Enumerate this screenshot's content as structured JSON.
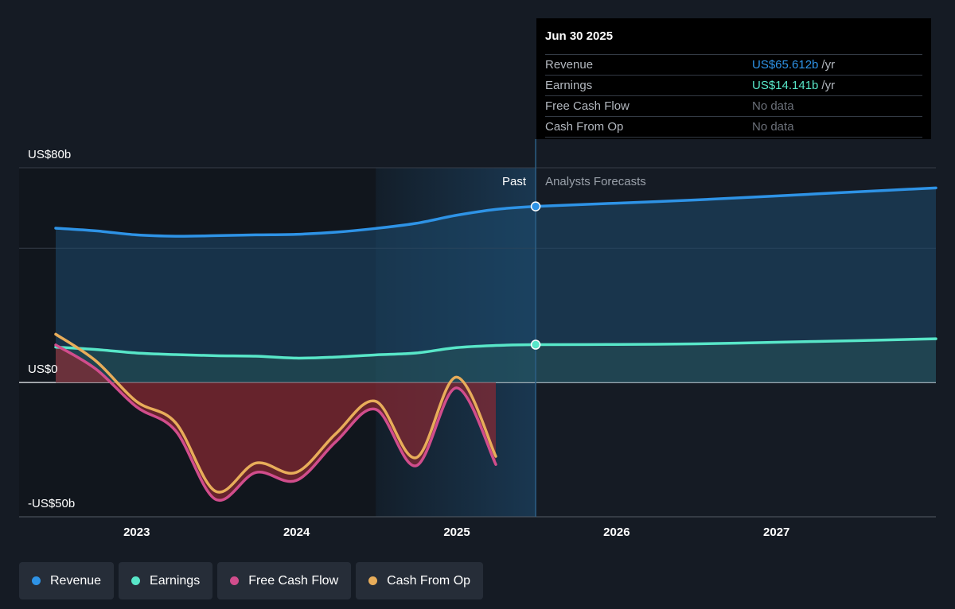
{
  "tooltip": {
    "date": "Jun 30 2025",
    "rows": [
      {
        "label": "Revenue",
        "value": "US$65.612b",
        "unit": "/yr",
        "color": "#2e93e6"
      },
      {
        "label": "Earnings",
        "value": "US$14.141b",
        "unit": "/yr",
        "color": "#58e6c8"
      },
      {
        "label": "Free Cash Flow",
        "value": "No data",
        "unit": "",
        "color": "#6b7079"
      },
      {
        "label": "Cash From Op",
        "value": "No data",
        "unit": "",
        "color": "#6b7079"
      }
    ]
  },
  "legend": [
    {
      "label": "Revenue",
      "color": "#2e93e6"
    },
    {
      "label": "Earnings",
      "color": "#58e6c8"
    },
    {
      "label": "Free Cash Flow",
      "color": "#d14d8c"
    },
    {
      "label": "Cash From Op",
      "color": "#e8ad5a"
    }
  ],
  "chart_data": {
    "type": "line",
    "title": "",
    "xlabel": "",
    "ylabel": "",
    "ylim": [
      -50,
      80
    ],
    "xlim": [
      "2022-06-30",
      "2027-12-31"
    ],
    "y_tick_labels": [
      {
        "value": 80,
        "label": "US$80b"
      },
      {
        "value": 0,
        "label": "US$0"
      },
      {
        "value": -50,
        "label": "-US$50b"
      }
    ],
    "x_ticks": [
      "2023",
      "2024",
      "2025",
      "2026",
      "2027"
    ],
    "past_label": "Past",
    "forecast_label": "Analysts Forecasts",
    "divider_date": "2025-06-30",
    "highlight_range": [
      "2024-06-30",
      "2025-06-30"
    ],
    "grid": true,
    "legend_position": "bottom-left",
    "series": [
      {
        "name": "Revenue",
        "color": "#2e93e6",
        "fill": true,
        "points": [
          [
            "2022-06-30",
            57.5
          ],
          [
            "2022-09-30",
            56.5
          ],
          [
            "2022-12-31",
            55
          ],
          [
            "2023-03-31",
            54.5
          ],
          [
            "2023-06-30",
            54.7
          ],
          [
            "2023-09-30",
            55
          ],
          [
            "2023-12-31",
            55.2
          ],
          [
            "2024-03-31",
            56
          ],
          [
            "2024-06-30",
            57.4
          ],
          [
            "2024-09-30",
            59.3
          ],
          [
            "2024-12-31",
            62.3
          ],
          [
            "2025-03-31",
            64.5
          ],
          [
            "2025-06-30",
            65.6
          ],
          [
            "2025-12-31",
            66.8
          ],
          [
            "2026-06-30",
            68
          ],
          [
            "2026-12-31",
            69.5
          ],
          [
            "2027-06-30",
            71
          ],
          [
            "2027-12-31",
            72.5
          ]
        ]
      },
      {
        "name": "Earnings",
        "color": "#58e6c8",
        "fill": true,
        "points": [
          [
            "2022-06-30",
            13.2
          ],
          [
            "2022-09-30",
            12.3
          ],
          [
            "2022-12-31",
            11
          ],
          [
            "2023-03-31",
            10.4
          ],
          [
            "2023-06-30",
            10
          ],
          [
            "2023-09-30",
            9.8
          ],
          [
            "2023-12-31",
            9.1
          ],
          [
            "2024-03-31",
            9.5
          ],
          [
            "2024-06-30",
            10.3
          ],
          [
            "2024-09-30",
            11
          ],
          [
            "2024-12-31",
            13
          ],
          [
            "2025-03-31",
            13.8
          ],
          [
            "2025-06-30",
            14.1
          ],
          [
            "2025-12-31",
            14.2
          ],
          [
            "2026-06-30",
            14.4
          ],
          [
            "2026-12-31",
            15
          ],
          [
            "2027-06-30",
            15.6
          ],
          [
            "2027-12-31",
            16.3
          ]
        ]
      },
      {
        "name": "Free Cash Flow",
        "color": "#d14d8c",
        "fill": true,
        "points": [
          [
            "2022-06-30",
            14
          ],
          [
            "2022-09-30",
            5
          ],
          [
            "2022-12-31",
            -9
          ],
          [
            "2023-03-31",
            -18
          ],
          [
            "2023-06-30",
            -43.5
          ],
          [
            "2023-09-30",
            -33.5
          ],
          [
            "2023-12-31",
            -36.5
          ],
          [
            "2024-03-31",
            -22
          ],
          [
            "2024-06-30",
            -10
          ],
          [
            "2024-09-30",
            -31
          ],
          [
            "2024-12-31",
            -2
          ],
          [
            "2025-03-31",
            -30.5
          ]
        ]
      },
      {
        "name": "Cash From Op",
        "color": "#e8ad5a",
        "fill": false,
        "points": [
          [
            "2022-06-30",
            18
          ],
          [
            "2022-09-30",
            8
          ],
          [
            "2022-12-31",
            -7
          ],
          [
            "2023-03-31",
            -15
          ],
          [
            "2023-06-30",
            -40.5
          ],
          [
            "2023-09-30",
            -30
          ],
          [
            "2023-12-31",
            -33.5
          ],
          [
            "2024-03-31",
            -19
          ],
          [
            "2024-06-30",
            -7
          ],
          [
            "2024-09-30",
            -28
          ],
          [
            "2024-12-31",
            2
          ],
          [
            "2025-03-31",
            -27.5
          ]
        ]
      }
    ],
    "markers": [
      {
        "series": "Revenue",
        "date": "2025-06-30",
        "value": 65.6
      },
      {
        "series": "Earnings",
        "date": "2025-06-30",
        "value": 14.1
      }
    ]
  }
}
